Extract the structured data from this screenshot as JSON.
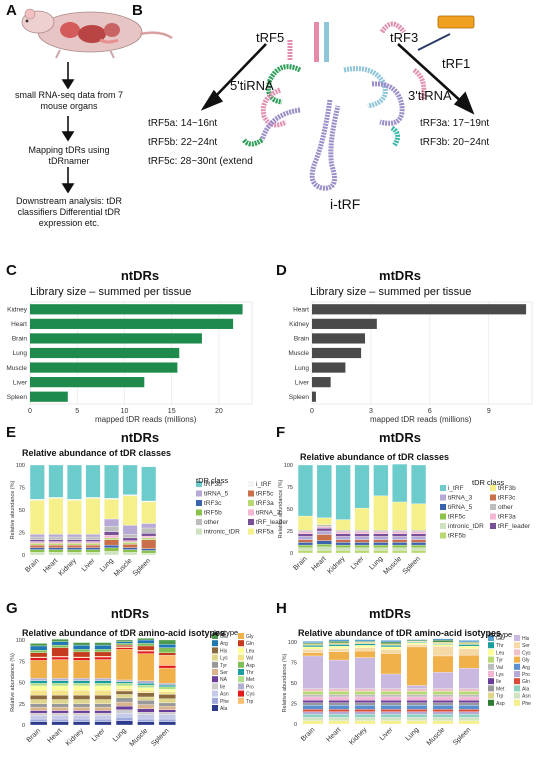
{
  "panels": {
    "A": {
      "label": "A",
      "steps": [
        "small RNA-seq data from 7 mouse organs",
        "Mapping tDRs using tDRnamer",
        "Downstream analysis: tDR classifiers Differential tDR expression etc."
      ]
    },
    "B": {
      "label": "B",
      "fragments": {
        "trf5": "tRF5",
        "trf3": "tRF3",
        "trf1": "tRF1",
        "tirna5": "5'tiRNA",
        "tirna3": "3'tiRNA",
        "itrf": "i-tRF"
      },
      "lengths_5": [
        "tRF5a: 14~16nt",
        "tRF5b: 22~24nt",
        "tRF5c: 28~30nt (extend"
      ],
      "lengths_3": [
        "tRF3a: 17~19nt",
        "tRF3b: 20~24nt"
      ]
    },
    "C": {
      "label": "C",
      "title": "ntDRs",
      "subtitle": "Library size – summed per tissue",
      "xlabel": "mapped tDR reads (millions)"
    },
    "D": {
      "label": "D",
      "title": "mtDRs",
      "subtitle": "Library size – summed per tissue",
      "xlabel": "mapped tDR reads (millions)"
    },
    "E": {
      "label": "E",
      "title": "ntDRs",
      "subtitle": "Relative abundance of tDR classes",
      "ylabel": "Relative abundance (%)",
      "legend_title": "tDR class"
    },
    "F": {
      "label": "F",
      "title": "mtDRs",
      "subtitle": "Relative abundance of tDR classes",
      "ylabel": "Relative abundance (%)",
      "legend_title": "tDR class"
    },
    "G": {
      "label": "G",
      "title": "ntDRs",
      "subtitle": "Relative abundance of tDR amino-acid isotypes",
      "ylabel": "Relative abundance (%)",
      "legend_title": "Isotype"
    },
    "H": {
      "label": "H",
      "title": "mtDRs",
      "subtitle": "Relative abundance of tDR amino-acid isotypes",
      "ylabel": "Relative abundance (%)",
      "legend_title": "Isotype"
    }
  },
  "colors": {
    "nt_bar": "#1e8a4c",
    "mt_bar": "#4a4a4a"
  },
  "chart_data": [
    {
      "id": "C",
      "type": "bar",
      "orientation": "horizontal",
      "categories": [
        "Kidney",
        "Heart",
        "Brain",
        "Lung",
        "Muscle",
        "Liver",
        "Spleen"
      ],
      "values": [
        22.5,
        21.5,
        18.2,
        15.8,
        15.6,
        12.1,
        4.0
      ],
      "xlim": [
        0,
        23.5
      ],
      "xticks": [
        0,
        5,
        10,
        15,
        20
      ],
      "xlabel": "mapped tDR reads (millions)",
      "color": "#1e8a4c",
      "grid": true
    },
    {
      "id": "D",
      "type": "bar",
      "orientation": "horizontal",
      "categories": [
        "Heart",
        "Kidney",
        "Brain",
        "Muscle",
        "Lung",
        "Liver",
        "Spleen"
      ],
      "values": [
        10.9,
        3.3,
        2.7,
        2.5,
        1.7,
        0.95,
        0.2
      ],
      "xlim": [
        0,
        11.2
      ],
      "xticks": [
        0,
        3,
        6,
        9
      ],
      "xlabel": "mapped tDR reads (millions)",
      "color": "#4a4a4a",
      "grid": true
    },
    {
      "id": "E",
      "type": "bar",
      "stacked": true,
      "categories": [
        "Brain",
        "Heart",
        "Kidney",
        "Liver",
        "Lung",
        "Muscle",
        "Spleen"
      ],
      "ylim": [
        0,
        100
      ],
      "yticks": [
        0,
        25,
        50,
        75,
        100
      ],
      "legend": [
        "tRF3b",
        "tiRNA_5",
        "tRF3c",
        "tRF5b",
        "other",
        "intronic_tDR",
        "i_tRF",
        "tRF5c",
        "tRF3a",
        "tiRNA_3",
        "tRF_leader",
        "tRF5a"
      ],
      "series": [
        {
          "name": "intronic_tDR",
          "color": "#cfe3c0",
          "values": [
            3,
            3,
            3,
            3,
            4,
            3,
            2
          ]
        },
        {
          "name": "tRF5b",
          "color": "#8bc34a",
          "values": [
            3,
            3,
            3,
            3,
            4,
            3,
            3
          ]
        },
        {
          "name": "tRF3c",
          "color": "#3a63b0",
          "values": [
            2,
            2,
            2,
            2,
            3,
            2,
            2
          ]
        },
        {
          "name": "tRF5c",
          "color": "#c9704a",
          "values": [
            3,
            3,
            3,
            3,
            6,
            4,
            10
          ]
        },
        {
          "name": "tRF3a",
          "color": "#b8d870",
          "values": [
            2,
            2,
            2,
            2,
            2,
            2,
            2
          ]
        },
        {
          "name": "tiRNA_3",
          "color": "#f4b6d2",
          "values": [
            2,
            2,
            2,
            2,
            3,
            2,
            2
          ]
        },
        {
          "name": "tRF_leader",
          "color": "#7a4f9a",
          "values": [
            2,
            2,
            2,
            2,
            4,
            3,
            3
          ]
        },
        {
          "name": "other",
          "color": "#bdbdbd",
          "values": [
            3,
            3,
            3,
            3,
            6,
            4,
            6
          ]
        },
        {
          "name": "tiRNA_5",
          "color": "#b7a9d6",
          "values": [
            3,
            3,
            3,
            3,
            8,
            10,
            5
          ]
        },
        {
          "name": "tRF5a",
          "color": "#f5f08a",
          "values": [
            38,
            40,
            38,
            40,
            22,
            33,
            24
          ]
        },
        {
          "name": "i_tRF",
          "color": "#f4f4f4",
          "values": [
            1,
            1,
            1,
            1,
            1,
            1,
            1
          ]
        },
        {
          "name": "tRF3b",
          "color": "#6ccccc",
          "values": [
            38,
            36,
            38,
            36,
            37,
            33,
            38
          ]
        }
      ]
    },
    {
      "id": "F",
      "type": "bar",
      "stacked": true,
      "categories": [
        "Brain",
        "Heart",
        "Kidney",
        "Liver",
        "Lung",
        "Muscle",
        "Spleen"
      ],
      "ylim": [
        0,
        100
      ],
      "yticks": [
        0,
        25,
        50,
        75,
        100
      ],
      "legend": [
        "i_tRF",
        "tiRNA_3",
        "tiRNA_5",
        "tRF5c",
        "intronic_tDR",
        "tRF5b",
        "tRF3b",
        "tRF3c",
        "other",
        "tRF3a",
        "tRF_leader"
      ],
      "series": [
        {
          "name": "tRF5b",
          "color": "#b8d870",
          "values": [
            3,
            3,
            3,
            3,
            3,
            3,
            3
          ]
        },
        {
          "name": "intronic_tDR",
          "color": "#cfe3c0",
          "values": [
            3,
            4,
            3,
            3,
            3,
            3,
            3
          ]
        },
        {
          "name": "tRF5c",
          "color": "#8bc34a",
          "values": [
            3,
            3,
            3,
            3,
            3,
            3,
            3
          ]
        },
        {
          "name": "tiRNA_5",
          "color": "#3a63b0",
          "values": [
            3,
            4,
            3,
            3,
            3,
            3,
            3
          ]
        },
        {
          "name": "tRF3c",
          "color": "#c9704a",
          "values": [
            3,
            7,
            3,
            3,
            3,
            3,
            3
          ]
        },
        {
          "name": "tiRNA_3",
          "color": "#b7a9d6",
          "values": [
            4,
            4,
            4,
            4,
            4,
            4,
            4
          ]
        },
        {
          "name": "tRF_leader",
          "color": "#7a4f9a",
          "values": [
            3,
            3,
            3,
            3,
            3,
            3,
            3
          ]
        },
        {
          "name": "tRF3a",
          "color": "#f4b6d2",
          "values": [
            2,
            2,
            2,
            2,
            2,
            2,
            2
          ]
        },
        {
          "name": "other",
          "color": "#bdbdbd",
          "values": [
            2,
            2,
            2,
            2,
            2,
            2,
            2
          ]
        },
        {
          "name": "tRF3b",
          "color": "#f5f08a",
          "values": [
            16,
            8,
            12,
            25,
            39,
            32,
            30
          ]
        },
        {
          "name": "i_tRF",
          "color": "#6ccccc",
          "values": [
            58,
            60,
            62,
            49,
            35,
            43,
            44
          ]
        }
      ]
    },
    {
      "id": "G",
      "type": "bar",
      "stacked": true,
      "categories": [
        "Brain",
        "Heart",
        "Kidney",
        "Liver",
        "Lung",
        "Muscle",
        "Spleen"
      ],
      "ylim": [
        0,
        100
      ],
      "yticks": [
        0,
        25,
        50,
        75,
        100
      ],
      "legend": [
        "Glu",
        "Arg",
        "His",
        "Lys",
        "Tyr",
        "Ser",
        "NA",
        "Ile",
        "Asn",
        "Phe",
        "Ala",
        "Gly",
        "Gln",
        "Leu",
        "Val",
        "Asp",
        "Thr",
        "Met",
        "Pro",
        "Cys",
        "Trp"
      ],
      "series": [
        {
          "name": "Ala",
          "color": "#2e3a8c",
          "values": [
            4,
            4,
            4,
            4,
            5,
            4,
            4
          ]
        },
        {
          "name": "Phe",
          "color": "#9fa8da",
          "values": [
            3,
            3,
            3,
            3,
            4,
            3,
            3
          ]
        },
        {
          "name": "Asn",
          "color": "#c5cae9",
          "values": [
            4,
            4,
            4,
            4,
            5,
            5,
            5
          ]
        },
        {
          "name": "Ile",
          "color": "#cccccc",
          "values": [
            3,
            3,
            3,
            3,
            4,
            3,
            3
          ]
        },
        {
          "name": "NA",
          "color": "#6a3d9a",
          "values": [
            3,
            3,
            3,
            3,
            4,
            4,
            3
          ]
        },
        {
          "name": "Ser",
          "color": "#d9b38c",
          "values": [
            4,
            4,
            4,
            4,
            5,
            5,
            4
          ]
        },
        {
          "name": "Tyr",
          "color": "#999999",
          "values": [
            4,
            4,
            4,
            4,
            5,
            5,
            4
          ]
        },
        {
          "name": "Lys",
          "color": "#e0d68a",
          "values": [
            5,
            5,
            5,
            5,
            4,
            4,
            5
          ]
        },
        {
          "name": "His",
          "color": "#8b6a3e",
          "values": [
            5,
            5,
            5,
            5,
            4,
            5,
            5
          ]
        },
        {
          "name": "Val",
          "color": "#f5e38a",
          "values": [
            6,
            6,
            6,
            6,
            3,
            3,
            3
          ]
        },
        {
          "name": "Leu",
          "color": "#ffff99",
          "values": [
            5,
            5,
            5,
            5,
            3,
            3,
            3
          ]
        },
        {
          "name": "Met",
          "color": "#b2df8a",
          "values": [
            3,
            3,
            3,
            3,
            3,
            3,
            3
          ]
        },
        {
          "name": "Thr",
          "color": "#1b9e9e",
          "values": [
            3,
            3,
            3,
            3,
            2,
            2,
            2
          ]
        },
        {
          "name": "Pro",
          "color": "#b0b0d0",
          "values": [
            3,
            3,
            3,
            3,
            2,
            3,
            2
          ]
        },
        {
          "name": "Gly",
          "color": "#f0b04a",
          "values": [
            21,
            22,
            21,
            22,
            36,
            32,
            18
          ]
        },
        {
          "name": "Cys",
          "color": "#e31a1c",
          "values": [
            3,
            3,
            3,
            3,
            2,
            3,
            3
          ]
        },
        {
          "name": "Trp",
          "color": "#fdbf6f",
          "values": [
            1,
            1,
            1,
            1,
            1,
            1,
            12
          ]
        },
        {
          "name": "Gln",
          "color": "#c43c1c",
          "values": [
            5,
            10,
            6,
            5,
            2,
            5,
            3
          ]
        },
        {
          "name": "Asp",
          "color": "#7fbf5a",
          "values": [
            3,
            3,
            3,
            3,
            2,
            3,
            6
          ]
        },
        {
          "name": "Arg",
          "color": "#1f78b4",
          "values": [
            5,
            4,
            5,
            5,
            2,
            4,
            4
          ]
        },
        {
          "name": "Glu",
          "color": "#4c9a4c",
          "values": [
            3,
            3,
            3,
            3,
            2,
            2,
            5
          ]
        }
      ]
    },
    {
      "id": "H",
      "type": "bar",
      "stacked": true,
      "categories": [
        "Brain",
        "Heart",
        "Kidney",
        "Liver",
        "Lung",
        "Muscle",
        "Spleen"
      ],
      "ylim": [
        0,
        100
      ],
      "yticks": [
        0,
        25,
        50,
        75,
        100
      ],
      "legend": [
        "Glu",
        "Thr",
        "Leu",
        "Tyr",
        "Val",
        "Lys",
        "Ile",
        "Met",
        "Trp",
        "Asp",
        "His",
        "Ser",
        "Cys",
        "Gly",
        "Arg",
        "Pro",
        "Gln",
        "Ala",
        "Asn",
        "Phe"
      ],
      "series": [
        {
          "name": "Phe",
          "color": "#f5f08a",
          "values": [
            4,
            4,
            4,
            4,
            4,
            4,
            4
          ]
        },
        {
          "name": "Asn",
          "color": "#cfe3c0",
          "values": [
            4,
            4,
            4,
            4,
            4,
            4,
            4
          ]
        },
        {
          "name": "Ala",
          "color": "#8fd0c0",
          "values": [
            4,
            4,
            4,
            4,
            4,
            4,
            4
          ]
        },
        {
          "name": "Pro",
          "color": "#b7a9d6",
          "values": [
            3,
            3,
            3,
            3,
            3,
            3,
            3
          ]
        },
        {
          "name": "Gln",
          "color": "#d94a3a",
          "values": [
            3,
            3,
            3,
            3,
            3,
            3,
            3
          ]
        },
        {
          "name": "Arg",
          "color": "#5a8fd0",
          "values": [
            5,
            5,
            5,
            5,
            5,
            5,
            5
          ]
        },
        {
          "name": "Met",
          "color": "#999999",
          "values": [
            3,
            3,
            3,
            3,
            3,
            3,
            3
          ]
        },
        {
          "name": "Ile",
          "color": "#6a3d9a",
          "values": [
            3,
            3,
            3,
            3,
            3,
            3,
            3
          ]
        },
        {
          "name": "Lys",
          "color": "#f4b6d2",
          "values": [
            4,
            4,
            4,
            4,
            4,
            4,
            4
          ]
        },
        {
          "name": "Val",
          "color": "#bdbdbd",
          "values": [
            3,
            3,
            3,
            3,
            3,
            3,
            3
          ]
        },
        {
          "name": "Tyr",
          "color": "#b8d870",
          "values": [
            4,
            4,
            4,
            4,
            4,
            4,
            4
          ]
        },
        {
          "name": "Cys",
          "color": "#f0c0c8",
          "values": [
            3,
            3,
            3,
            3,
            3,
            3,
            3
          ]
        },
        {
          "name": "His",
          "color": "#c9b8e0",
          "values": [
            40,
            35,
            38,
            18,
            4,
            20,
            25
          ]
        },
        {
          "name": "Gly",
          "color": "#f0b04a",
          "values": [
            4,
            10,
            8,
            25,
            47,
            20,
            16
          ]
        },
        {
          "name": "Ser",
          "color": "#f5d9a6",
          "values": [
            4,
            4,
            4,
            5,
            3,
            12,
            8
          ]
        },
        {
          "name": "Leu",
          "color": "#ffff99",
          "values": [
            3,
            3,
            3,
            3,
            2,
            2,
            3
          ]
        },
        {
          "name": "Thr",
          "color": "#1b9e9e",
          "values": [
            2,
            2,
            2,
            2,
            1,
            1,
            2
          ]
        },
        {
          "name": "Trp",
          "color": "#e0d68a",
          "values": [
            2,
            2,
            2,
            2,
            1,
            2,
            2
          ]
        },
        {
          "name": "Asp",
          "color": "#2e7d32",
          "values": [
            1,
            2,
            1,
            2,
            1,
            2,
            1
          ]
        },
        {
          "name": "Glu",
          "color": "#5aa0d0",
          "values": [
            2,
            2,
            2,
            2,
            1,
            2,
            2
          ]
        }
      ]
    }
  ]
}
